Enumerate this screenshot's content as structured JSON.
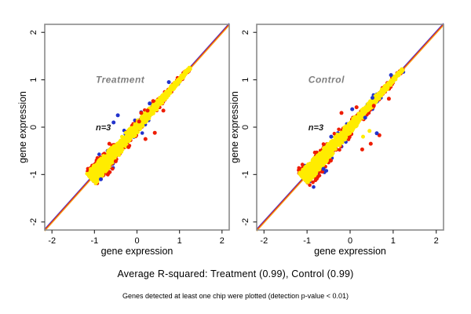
{
  "colors": {
    "background": "#ffffff",
    "box_border": "#8a8a8a",
    "tick_color": "#333333",
    "yellow_point": "#ffec00",
    "red_point": "#ee1c00",
    "blue_point": "#2233cc",
    "line_blue": "#5544cc",
    "line_red": "#ee2200",
    "line_orange": "#f5a623",
    "title_gray": "#7f7f7f",
    "text_black": "#000000"
  },
  "figure": {
    "caption": "Average R-squared: Treatment (0.99), Control (0.99)",
    "footnote": "Genes detected at least one chip were plotted (detection p-value < 0.01)"
  },
  "chart_data": [
    {
      "type": "scatter",
      "title": "Treatment",
      "annotation": "n=3",
      "n_replicates": 3,
      "r_squared": 0.99,
      "xlabel": "gene expression",
      "ylabel": "gene expression",
      "xlim": [
        -2.17,
        2.17
      ],
      "ylim": [
        -2.17,
        2.17
      ],
      "xticks": [
        -2,
        -1,
        0,
        1,
        2
      ],
      "yticks": [
        -2,
        -1,
        0,
        1,
        2
      ],
      "identity_line": "y = x",
      "cloud": {
        "seed": 42,
        "t_min": -1.08,
        "t_max": 1.25,
        "blob_center": -0.85,
        "blob_sd": 0.13,
        "blob_frac": 0.28,
        "width_max": 0.155,
        "width_min": 0.025,
        "layers": [
          {
            "color": "blue_point",
            "count": 60,
            "sigma": 0.8,
            "clip": 1.9
          },
          {
            "color": "red_point",
            "count": 420,
            "sigma": 0.7,
            "clip": 1.6
          },
          {
            "color": "yellow_point",
            "count": 1600,
            "sigma": 0.45,
            "clip": 1.0
          }
        ]
      },
      "outliers": {
        "red": [
          [
            0.38,
            0.55
          ],
          [
            0.25,
            0.35
          ],
          [
            0.1,
            0.3
          ],
          [
            0.42,
            -0.12
          ],
          [
            0.2,
            -0.25
          ],
          [
            -0.2,
            -0.42
          ],
          [
            -0.5,
            -0.72
          ],
          [
            0.62,
            0.35
          ],
          [
            -0.65,
            -0.35
          ],
          [
            0.05,
            0.12
          ]
        ],
        "blue": [
          [
            -0.55,
            0.1
          ],
          [
            -0.45,
            0.25
          ],
          [
            0.3,
            0.5
          ],
          [
            -0.85,
            -1.1
          ],
          [
            0.75,
            0.95
          ]
        ],
        "yellow": []
      }
    },
    {
      "type": "scatter",
      "title": "Control",
      "annotation": "n=3",
      "n_replicates": 3,
      "r_squared": 0.99,
      "xlabel": "gene expression",
      "ylabel": "gene expression",
      "xlim": [
        -2.17,
        2.17
      ],
      "ylim": [
        -2.17,
        2.17
      ],
      "xticks": [
        -2,
        -1,
        0,
        1,
        2
      ],
      "yticks": [
        -2,
        -1,
        0,
        1,
        2
      ],
      "identity_line": "y = x",
      "cloud": {
        "seed": 1337,
        "t_min": -1.08,
        "t_max": 1.22,
        "blob_center": -0.85,
        "blob_sd": 0.13,
        "blob_frac": 0.28,
        "width_max": 0.15,
        "width_min": 0.025,
        "layers": [
          {
            "color": "blue_point",
            "count": 110,
            "sigma": 0.85,
            "clip": 2.0
          },
          {
            "color": "red_point",
            "count": 380,
            "sigma": 0.7,
            "clip": 1.6
          },
          {
            "color": "yellow_point",
            "count": 1500,
            "sigma": 0.45,
            "clip": 1.0
          }
        ]
      },
      "outliers": {
        "red": [
          [
            0.68,
            -0.17
          ],
          [
            0.48,
            -0.35
          ],
          [
            0.28,
            -0.47
          ],
          [
            0.55,
            0.45
          ],
          [
            0.15,
            0.42
          ],
          [
            -0.2,
            0.3
          ],
          [
            0.9,
            0.6
          ],
          [
            -0.45,
            -0.7
          ]
        ],
        "blue": [
          [
            0.62,
            -0.13
          ],
          [
            -0.44,
            -0.2
          ],
          [
            0.05,
            0.38
          ],
          [
            0.52,
            0.62
          ],
          [
            0.35,
            0.2
          ],
          [
            -0.62,
            -0.88
          ],
          [
            0.95,
            1.1
          ]
        ],
        "yellow": [
          [
            0.3,
            -0.2
          ],
          [
            0.45,
            -0.08
          ]
        ]
      }
    }
  ]
}
